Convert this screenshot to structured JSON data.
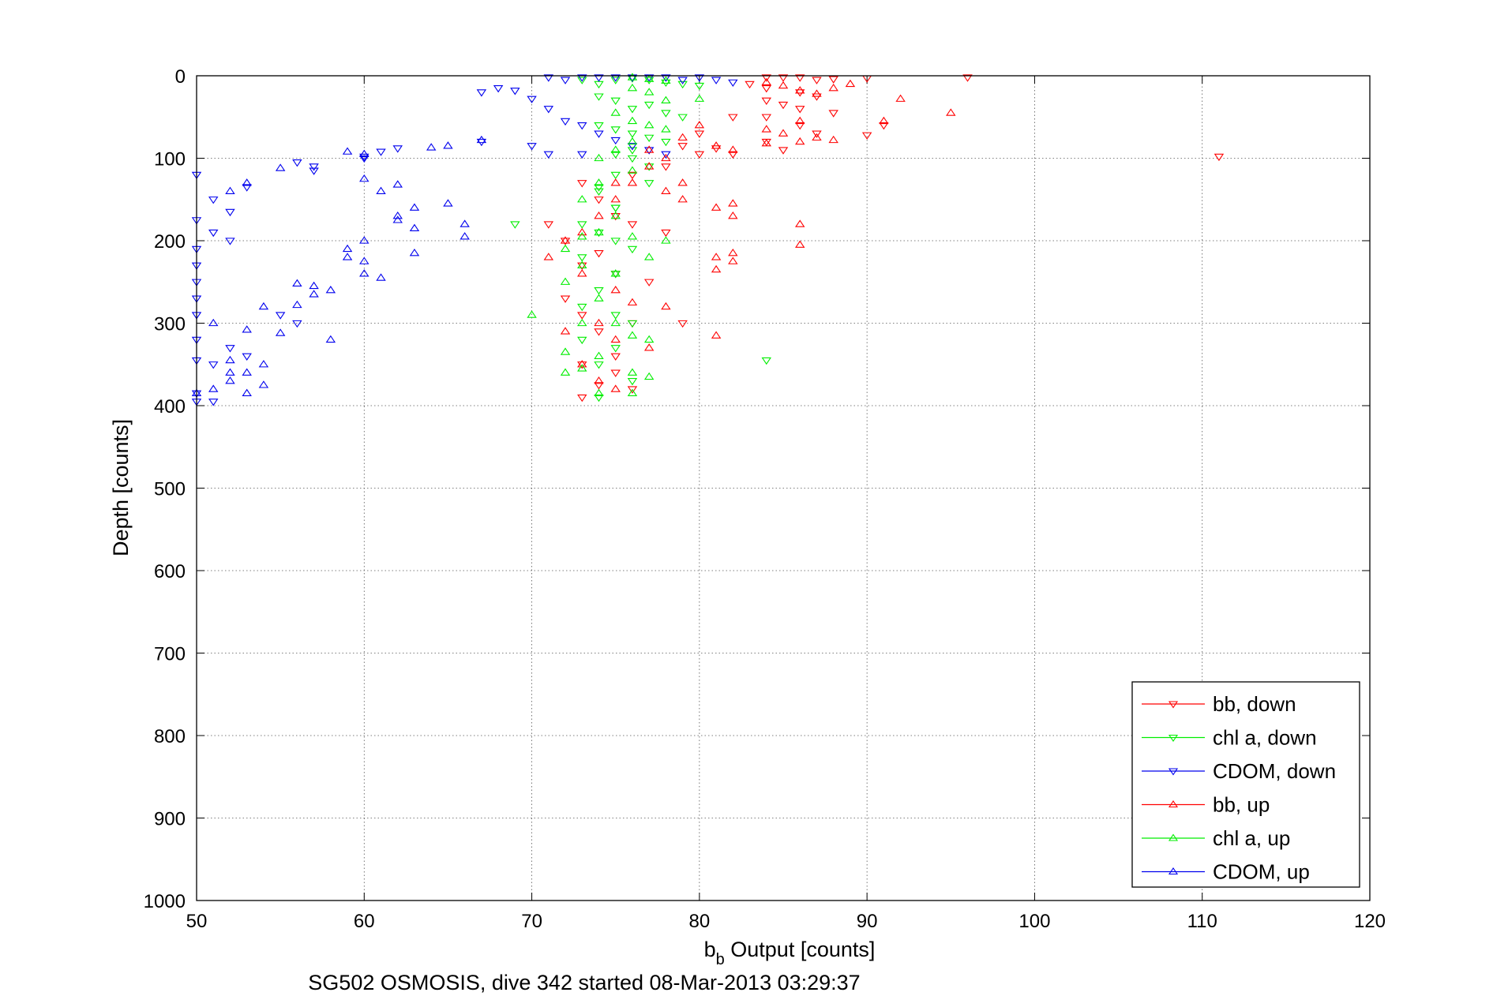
{
  "chart_data": {
    "type": "scatter",
    "xlabel_main": "b",
    "xlabel_sub": "b",
    "xlabel_rest": " Output [counts]",
    "ylabel": "Depth [counts]",
    "caption": "SG502 OSMOSIS, dive 342 started 08-Mar-2013 03:29:37",
    "xlim": [
      50,
      120
    ],
    "ylim": [
      0,
      1000
    ],
    "y_reversed": true,
    "grid": true,
    "legend_position": "bottom-right",
    "xticks": [
      "50",
      "60",
      "70",
      "80",
      "90",
      "100",
      "110",
      "120"
    ],
    "yticks": [
      "0",
      "100",
      "200",
      "300",
      "400",
      "500",
      "600",
      "700",
      "800",
      "900",
      "1000"
    ],
    "series": [
      {
        "name": "bb, down",
        "color": "#ff0000",
        "marker": "triangle-down",
        "points": [
          [
            84,
            2
          ],
          [
            85,
            2
          ],
          [
            86,
            2
          ],
          [
            87,
            5
          ],
          [
            88,
            4
          ],
          [
            90,
            3
          ],
          [
            96,
            2
          ],
          [
            83,
            10
          ],
          [
            84,
            15
          ],
          [
            86,
            20
          ],
          [
            87,
            25
          ],
          [
            84,
            30
          ],
          [
            85,
            35
          ],
          [
            86,
            40
          ],
          [
            88,
            45
          ],
          [
            84,
            50
          ],
          [
            86,
            60
          ],
          [
            87,
            70
          ],
          [
            90,
            72
          ],
          [
            82,
            50
          ],
          [
            80,
            70
          ],
          [
            79,
            85
          ],
          [
            81,
            88
          ],
          [
            82,
            95
          ],
          [
            80,
            95
          ],
          [
            78,
            110
          ],
          [
            76,
            120
          ],
          [
            73,
            130
          ],
          [
            74,
            150
          ],
          [
            75,
            170
          ],
          [
            76,
            180
          ],
          [
            71,
            180
          ],
          [
            78,
            190
          ],
          [
            72,
            200
          ],
          [
            74,
            215
          ],
          [
            73,
            230
          ],
          [
            75,
            240
          ],
          [
            77,
            250
          ],
          [
            72,
            270
          ],
          [
            73,
            290
          ],
          [
            76,
            300
          ],
          [
            79,
            300
          ],
          [
            74,
            310
          ],
          [
            75,
            340
          ],
          [
            73,
            350
          ],
          [
            75,
            360
          ],
          [
            74,
            375
          ],
          [
            76,
            380
          ],
          [
            73,
            390
          ],
          [
            111,
            98
          ],
          [
            91,
            60
          ],
          [
            85,
            90
          ],
          [
            84,
            80
          ]
        ]
      },
      {
        "name": "chl a, down",
        "color": "#00ee00",
        "marker": "triangle-down",
        "points": [
          [
            73,
            5
          ],
          [
            74,
            10
          ],
          [
            75,
            5
          ],
          [
            76,
            3
          ],
          [
            77,
            5
          ],
          [
            78,
            8
          ],
          [
            79,
            10
          ],
          [
            80,
            12
          ],
          [
            74,
            25
          ],
          [
            75,
            30
          ],
          [
            76,
            40
          ],
          [
            77,
            35
          ],
          [
            78,
            45
          ],
          [
            79,
            50
          ],
          [
            74,
            60
          ],
          [
            75,
            65
          ],
          [
            76,
            70
          ],
          [
            77,
            75
          ],
          [
            78,
            80
          ],
          [
            76,
            90
          ],
          [
            75,
            95
          ],
          [
            76,
            100
          ],
          [
            77,
            110
          ],
          [
            75,
            120
          ],
          [
            74,
            140
          ],
          [
            75,
            160
          ],
          [
            73,
            180
          ],
          [
            69,
            180
          ],
          [
            74,
            190
          ],
          [
            75,
            200
          ],
          [
            76,
            210
          ],
          [
            73,
            220
          ],
          [
            75,
            240
          ],
          [
            74,
            260
          ],
          [
            73,
            280
          ],
          [
            75,
            290
          ],
          [
            76,
            300
          ],
          [
            73,
            320
          ],
          [
            75,
            330
          ],
          [
            74,
            350
          ],
          [
            76,
            370
          ],
          [
            74,
            390
          ],
          [
            84,
            345
          ],
          [
            75,
            160
          ],
          [
            77,
            130
          ],
          [
            74,
            135
          ]
        ]
      },
      {
        "name": "CDOM, down",
        "color": "#0000ee",
        "marker": "triangle-down",
        "points": [
          [
            67,
            20
          ],
          [
            68,
            15
          ],
          [
            69,
            18
          ],
          [
            70,
            28
          ],
          [
            71,
            2
          ],
          [
            72,
            5
          ],
          [
            73,
            2
          ],
          [
            74,
            2
          ],
          [
            75,
            2
          ],
          [
            76,
            2
          ],
          [
            77,
            2
          ],
          [
            78,
            2
          ],
          [
            79,
            5
          ],
          [
            80,
            2
          ],
          [
            81,
            5
          ],
          [
            82,
            8
          ],
          [
            71,
            40
          ],
          [
            72,
            55
          ],
          [
            73,
            60
          ],
          [
            74,
            70
          ],
          [
            75,
            78
          ],
          [
            76,
            85
          ],
          [
            77,
            90
          ],
          [
            78,
            95
          ],
          [
            67,
            80
          ],
          [
            70,
            85
          ],
          [
            71,
            95
          ],
          [
            73,
            95
          ],
          [
            50,
            120
          ],
          [
            50,
            175
          ],
          [
            50,
            210
          ],
          [
            50,
            230
          ],
          [
            50,
            250
          ],
          [
            50,
            270
          ],
          [
            50,
            290
          ],
          [
            50,
            320
          ],
          [
            50,
            345
          ],
          [
            50,
            385
          ],
          [
            50,
            395
          ],
          [
            51,
            150
          ],
          [
            51,
            190
          ],
          [
            52,
            165
          ],
          [
            52,
            200
          ],
          [
            53,
            135
          ],
          [
            56,
            105
          ],
          [
            57,
            115
          ],
          [
            60,
            98
          ],
          [
            61,
            92
          ],
          [
            62,
            88
          ],
          [
            51,
            350
          ],
          [
            51,
            395
          ],
          [
            52,
            330
          ],
          [
            53,
            340
          ],
          [
            55,
            290
          ],
          [
            56,
            300
          ],
          [
            57,
            110
          ],
          [
            60,
            100
          ]
        ]
      },
      {
        "name": "bb, up",
        "color": "#ff0000",
        "marker": "triangle-up",
        "points": [
          [
            84,
            8
          ],
          [
            85,
            12
          ],
          [
            86,
            18
          ],
          [
            87,
            22
          ],
          [
            88,
            15
          ],
          [
            89,
            10
          ],
          [
            92,
            28
          ],
          [
            95,
            45
          ],
          [
            91,
            55
          ],
          [
            84,
            65
          ],
          [
            85,
            70
          ],
          [
            86,
            55
          ],
          [
            87,
            75
          ],
          [
            88,
            78
          ],
          [
            86,
            80
          ],
          [
            84,
            82
          ],
          [
            82,
            90
          ],
          [
            81,
            85
          ],
          [
            80,
            60
          ],
          [
            79,
            75
          ],
          [
            78,
            100
          ],
          [
            77,
            110
          ],
          [
            76,
            130
          ],
          [
            75,
            150
          ],
          [
            74,
            170
          ],
          [
            73,
            190
          ],
          [
            72,
            200
          ],
          [
            71,
            220
          ],
          [
            73,
            240
          ],
          [
            75,
            260
          ],
          [
            76,
            275
          ],
          [
            78,
            280
          ],
          [
            74,
            300
          ],
          [
            72,
            310
          ],
          [
            75,
            320
          ],
          [
            77,
            330
          ],
          [
            73,
            350
          ],
          [
            74,
            370
          ],
          [
            75,
            380
          ],
          [
            82,
            155
          ],
          [
            81,
            160
          ],
          [
            82,
            170
          ],
          [
            86,
            180
          ],
          [
            86,
            205
          ],
          [
            81,
            220
          ],
          [
            82,
            215
          ],
          [
            81,
            235
          ],
          [
            82,
            225
          ],
          [
            81,
            315
          ],
          [
            78,
            140
          ],
          [
            79,
            130
          ],
          [
            75,
            130
          ],
          [
            79,
            150
          ],
          [
            77,
            90
          ]
        ]
      },
      {
        "name": "chl a, up",
        "color": "#00ee00",
        "marker": "triangle-up",
        "points": [
          [
            76,
            2
          ],
          [
            77,
            4
          ],
          [
            78,
            6
          ],
          [
            76,
            15
          ],
          [
            77,
            20
          ],
          [
            78,
            30
          ],
          [
            80,
            28
          ],
          [
            75,
            45
          ],
          [
            76,
            55
          ],
          [
            77,
            60
          ],
          [
            78,
            65
          ],
          [
            76,
            80
          ],
          [
            75,
            90
          ],
          [
            74,
            100
          ],
          [
            76,
            115
          ],
          [
            74,
            130
          ],
          [
            73,
            150
          ],
          [
            75,
            170
          ],
          [
            74,
            190
          ],
          [
            76,
            195
          ],
          [
            72,
            210
          ],
          [
            73,
            230
          ],
          [
            75,
            240
          ],
          [
            77,
            220
          ],
          [
            72,
            250
          ],
          [
            74,
            270
          ],
          [
            73,
            300
          ],
          [
            70,
            290
          ],
          [
            76,
            315
          ],
          [
            77,
            320
          ],
          [
            72,
            335
          ],
          [
            74,
            340
          ],
          [
            76,
            360
          ],
          [
            77,
            365
          ],
          [
            74,
            385
          ],
          [
            76,
            385
          ],
          [
            72,
            360
          ],
          [
            73,
            355
          ],
          [
            75,
            300
          ],
          [
            78,
            200
          ],
          [
            73,
            195
          ]
        ]
      },
      {
        "name": "CDOM, up",
        "color": "#0000ee",
        "marker": "triangle-up",
        "points": [
          [
            59,
            92
          ],
          [
            60,
            95
          ],
          [
            64,
            87
          ],
          [
            65,
            85
          ],
          [
            67,
            78
          ],
          [
            55,
            112
          ],
          [
            52,
            140
          ],
          [
            53,
            130
          ],
          [
            61,
            140
          ],
          [
            62,
            132
          ],
          [
            63,
            160
          ],
          [
            62,
            175
          ],
          [
            65,
            155
          ],
          [
            66,
            195
          ],
          [
            63,
            185
          ],
          [
            60,
            200
          ],
          [
            59,
            210
          ],
          [
            60,
            225
          ],
          [
            61,
            245
          ],
          [
            57,
            265
          ],
          [
            58,
            260
          ],
          [
            56,
            252
          ],
          [
            55,
            312
          ],
          [
            54,
            350
          ],
          [
            53,
            360
          ],
          [
            52,
            370
          ],
          [
            53,
            385
          ],
          [
            54,
            375
          ],
          [
            52,
            360
          ],
          [
            57,
            255
          ],
          [
            59,
            220
          ],
          [
            60,
            240
          ],
          [
            63,
            215
          ],
          [
            66,
            180
          ],
          [
            58,
            320
          ],
          [
            56,
            278
          ],
          [
            54,
            280
          ],
          [
            51,
            380
          ],
          [
            50,
            385
          ],
          [
            51,
            300
          ],
          [
            53,
            308
          ],
          [
            52,
            345
          ],
          [
            62,
            170
          ],
          [
            60,
            125
          ]
        ]
      }
    ]
  }
}
